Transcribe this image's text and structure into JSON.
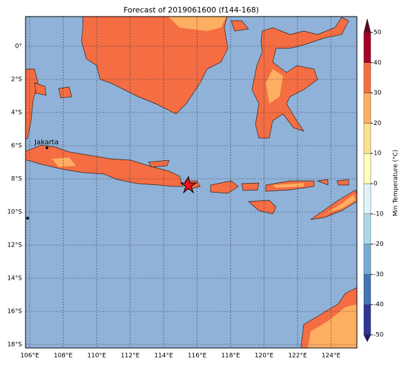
{
  "title": "Forecast of 2019061600 (f144-168)",
  "map": {
    "latitude_labels": [
      "0°",
      "2°S",
      "4°S",
      "6°S",
      "8°S",
      "10°S",
      "12°S",
      "14°S",
      "16°S",
      "18°S"
    ],
    "longitude_labels": [
      "106°E",
      "108°E",
      "110°E",
      "112°E",
      "114°E",
      "116°E",
      "118°E",
      "120°E",
      "122°E",
      "124°E"
    ],
    "places": [
      {
        "label": "Jakarta"
      }
    ]
  },
  "colorbar": {
    "label": "Min Temperature (°C)",
    "ticks": [
      50,
      40,
      30,
      20,
      10,
      0,
      -10,
      -20,
      -30,
      -40,
      -50
    ]
  }
}
